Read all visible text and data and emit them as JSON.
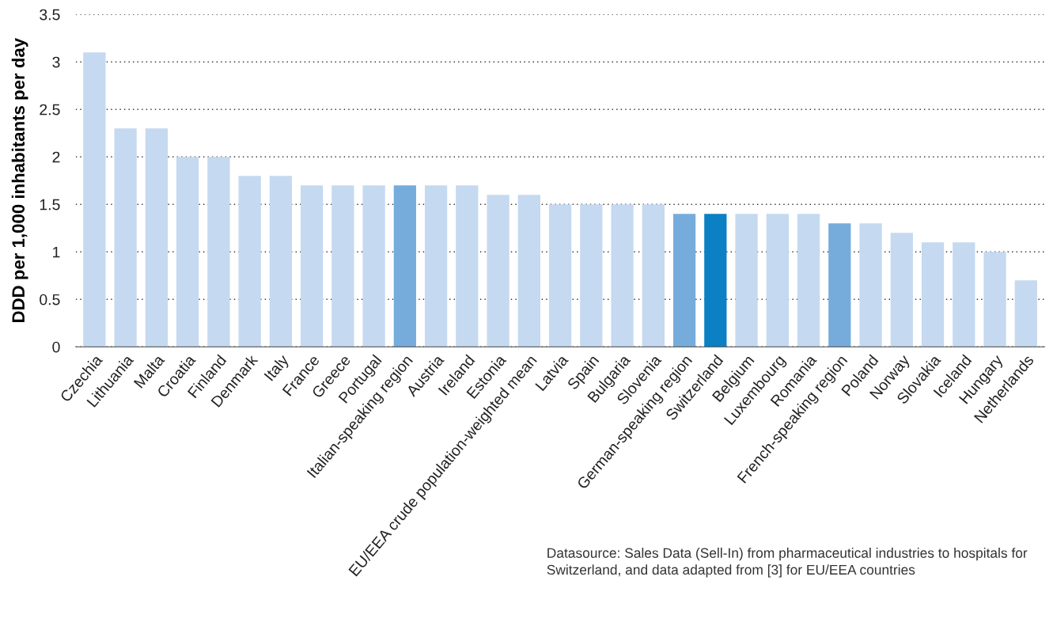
{
  "chart_data": {
    "type": "bar",
    "ylabel": "DDD per 1,000 inhabitants per day",
    "categories": [
      "Czechia",
      "Lithuania",
      "Malta",
      "Croatia",
      "Finland",
      "Denmark",
      "Italy",
      "France",
      "Greece",
      "Portugal",
      "Italian-speaking region",
      "Austria",
      "Ireland",
      "Estonia",
      "EU/EEA crude population-weighted mean",
      "Latvia",
      "Spain",
      "Bulgaria",
      "Slovenia",
      "German-speaking region",
      "Switzerland",
      "Belgium",
      "Luxembourg",
      "Romania",
      "French-speaking region",
      "Poland",
      "Norway",
      "Slovakia",
      "Iceland",
      "Hungary",
      "Netherlands"
    ],
    "values": [
      3.1,
      2.3,
      2.3,
      2.0,
      2.0,
      1.8,
      1.8,
      1.7,
      1.7,
      1.7,
      1.7,
      1.7,
      1.7,
      1.6,
      1.6,
      1.5,
      1.5,
      1.5,
      1.5,
      1.4,
      1.4,
      1.4,
      1.4,
      1.4,
      1.3,
      1.3,
      1.2,
      1.1,
      1.1,
      1.0,
      0.7
    ],
    "colors": [
      "#c5d9f0",
      "#c5d9f0",
      "#c5d9f0",
      "#c5d9f0",
      "#c5d9f0",
      "#c5d9f0",
      "#c5d9f0",
      "#c5d9f0",
      "#c5d9f0",
      "#c5d9f0",
      "#76acdb",
      "#c5d9f0",
      "#c5d9f0",
      "#c5d9f0",
      "#c5d9f0",
      "#c5d9f0",
      "#c5d9f0",
      "#c5d9f0",
      "#c5d9f0",
      "#76acdb",
      "#0b80c3",
      "#c5d9f0",
      "#c5d9f0",
      "#c5d9f0",
      "#76acdb",
      "#c5d9f0",
      "#c5d9f0",
      "#c5d9f0",
      "#c5d9f0",
      "#c5d9f0",
      "#c5d9f0"
    ],
    "ylim": [
      0,
      3.5
    ],
    "yticks": [
      0,
      0.5,
      1,
      1.5,
      2,
      2.5,
      3,
      3.5
    ],
    "grid": "y",
    "annotations": [
      "Datasource: Sales Data (Sell-In) from pharmaceutical industries to hospitals for Switzerland, and data adapted from [3] for EU/EEA countries"
    ]
  }
}
